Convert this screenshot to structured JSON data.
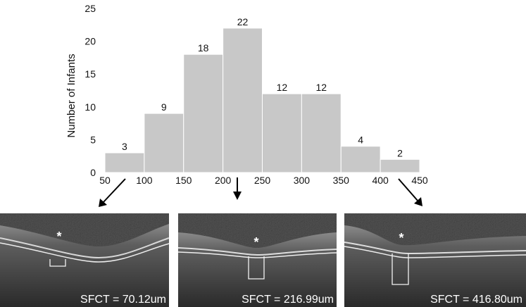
{
  "chart_data": {
    "type": "bar",
    "ylabel": "Number of Infants",
    "x_ticks": [
      "50",
      "100",
      "150",
      "200",
      "250",
      "300",
      "350",
      "400",
      "450"
    ],
    "y_ticks": [
      "0",
      "5",
      "10",
      "15",
      "20",
      "25"
    ],
    "bins": [
      [
        50,
        100
      ],
      [
        100,
        150
      ],
      [
        150,
        200
      ],
      [
        200,
        250
      ],
      [
        250,
        300
      ],
      [
        300,
        350
      ],
      [
        350,
        400
      ],
      [
        400,
        450
      ]
    ],
    "values": [
      3,
      9,
      18,
      22,
      12,
      12,
      4,
      2
    ],
    "value_labels": [
      "3",
      "9",
      "18",
      "22",
      "12",
      "12",
      "4",
      "2"
    ],
    "xlim": [
      50,
      450
    ],
    "ylim": [
      0,
      25
    ],
    "grid": false,
    "bar_color": "#c8c8c8"
  },
  "oct_scans": [
    {
      "label": "SFCT = 70.12um",
      "marker": "*"
    },
    {
      "label": "SFCT = 216.99um",
      "marker": "*"
    },
    {
      "label": "SFCT = 416.80um",
      "marker": "*"
    }
  ]
}
